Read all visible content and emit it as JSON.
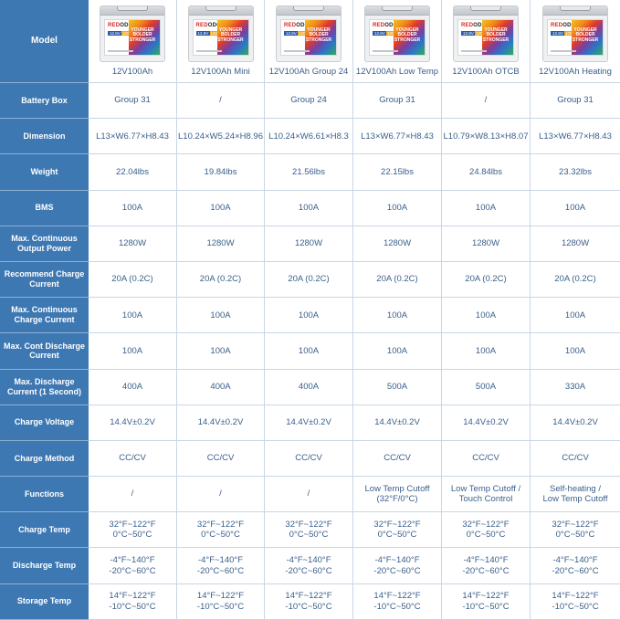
{
  "brand": {
    "prefix": "RED",
    "suffix": "ODO",
    "slogan": "YOUNGER\nBOLDER\nSTRONGER",
    "voltage": "12.8V",
    "capacity": "100Ah"
  },
  "colors": {
    "header_bg": "#3d78b3",
    "text": "#3a5f8a",
    "grid": "#c9d6e4"
  },
  "header_label": "Model",
  "products": [
    {
      "name": "12V100Ah",
      "image_icon": "battery-image"
    },
    {
      "name": "12V100Ah Mini",
      "image_icon": "battery-image"
    },
    {
      "name": "12V100Ah Group 24",
      "image_icon": "battery-image"
    },
    {
      "name": "12V100Ah Low Temp",
      "image_icon": "battery-image"
    },
    {
      "name": "12V100Ah OTCB",
      "image_icon": "battery-image"
    },
    {
      "name": "12V100Ah Heating",
      "image_icon": "battery-image"
    }
  ],
  "rows": [
    {
      "label": "Battery Box",
      "values": [
        "Group 31",
        "/",
        "Group 24",
        "Group 31",
        "/",
        "Group 31"
      ]
    },
    {
      "label": "Dimension",
      "values": [
        "L13×W6.77×H8.43",
        "L10.24×W5.24×H8.96",
        "L10.24×W6.61×H8.3",
        "L13×W6.77×H8.43",
        "L10.79×W8.13×H8.07",
        "L13×W6.77×H8.43"
      ]
    },
    {
      "label": "Weight",
      "values": [
        "22.04lbs",
        "19.84lbs",
        "21.56lbs",
        "22.15lbs",
        "24.84lbs",
        "23.32lbs"
      ]
    },
    {
      "label": "BMS",
      "values": [
        "100A",
        "100A",
        "100A",
        "100A",
        "100A",
        "100A"
      ]
    },
    {
      "label": "Max. Continuous\nOutput Power",
      "values": [
        "1280W",
        "1280W",
        "1280W",
        "1280W",
        "1280W",
        "1280W"
      ]
    },
    {
      "label": "Recommend Charge\nCurrent",
      "values": [
        "20A (0.2C)",
        "20A (0.2C)",
        "20A (0.2C)",
        "20A (0.2C)",
        "20A (0.2C)",
        "20A (0.2C)"
      ]
    },
    {
      "label": "Max. Continuous\nCharge Current",
      "values": [
        "100A",
        "100A",
        "100A",
        "100A",
        "100A",
        "100A"
      ]
    },
    {
      "label": "Max. Cont Discharge\nCurrent",
      "values": [
        "100A",
        "100A",
        "100A",
        "100A",
        "100A",
        "100A"
      ]
    },
    {
      "label": "Max. Discharge\nCurrent (1 Second)",
      "values": [
        "400A",
        "400A",
        "400A",
        "500A",
        "500A",
        "330A"
      ]
    },
    {
      "label": "Charge Voltage",
      "values": [
        "14.4V±0.2V",
        "14.4V±0.2V",
        "14.4V±0.2V",
        "14.4V±0.2V",
        "14.4V±0.2V",
        "14.4V±0.2V"
      ]
    },
    {
      "label": "Charge Method",
      "values": [
        "CC/CV",
        "CC/CV",
        "CC/CV",
        "CC/CV",
        "CC/CV",
        "CC/CV"
      ]
    },
    {
      "label": "Functions",
      "values": [
        "/",
        "/",
        "/",
        "Low Temp Cutoff\n(32°F/0°C)",
        "Low Temp Cutoff /\nTouch Control",
        "Self-heating /\nLow Temp Cutoff"
      ]
    },
    {
      "label": "Charge Temp",
      "values": [
        "32°F~122°F\n0°C~50°C",
        "32°F~122°F\n0°C~50°C",
        "32°F~122°F\n0°C~50°C",
        "32°F~122°F\n0°C~50°C",
        "32°F~122°F\n0°C~50°C",
        "32°F~122°F\n0°C~50°C"
      ]
    },
    {
      "label": "Discharge Temp",
      "values": [
        "-4°F~140°F\n-20°C~60°C",
        "-4°F~140°F\n-20°C~60°C",
        "-4°F~140°F\n-20°C~60°C",
        "-4°F~140°F\n-20°C~60°C",
        "-4°F~140°F\n-20°C~60°C",
        "-4°F~140°F\n-20°C~60°C"
      ]
    },
    {
      "label": "Storage Temp",
      "values": [
        "14°F~122°F\n-10°C~50°C",
        "14°F~122°F\n-10°C~50°C",
        "14°F~122°F\n-10°C~50°C",
        "14°F~122°F\n-10°C~50°C",
        "14°F~122°F\n-10°C~50°C",
        "14°F~122°F\n-10°C~50°C"
      ]
    }
  ]
}
